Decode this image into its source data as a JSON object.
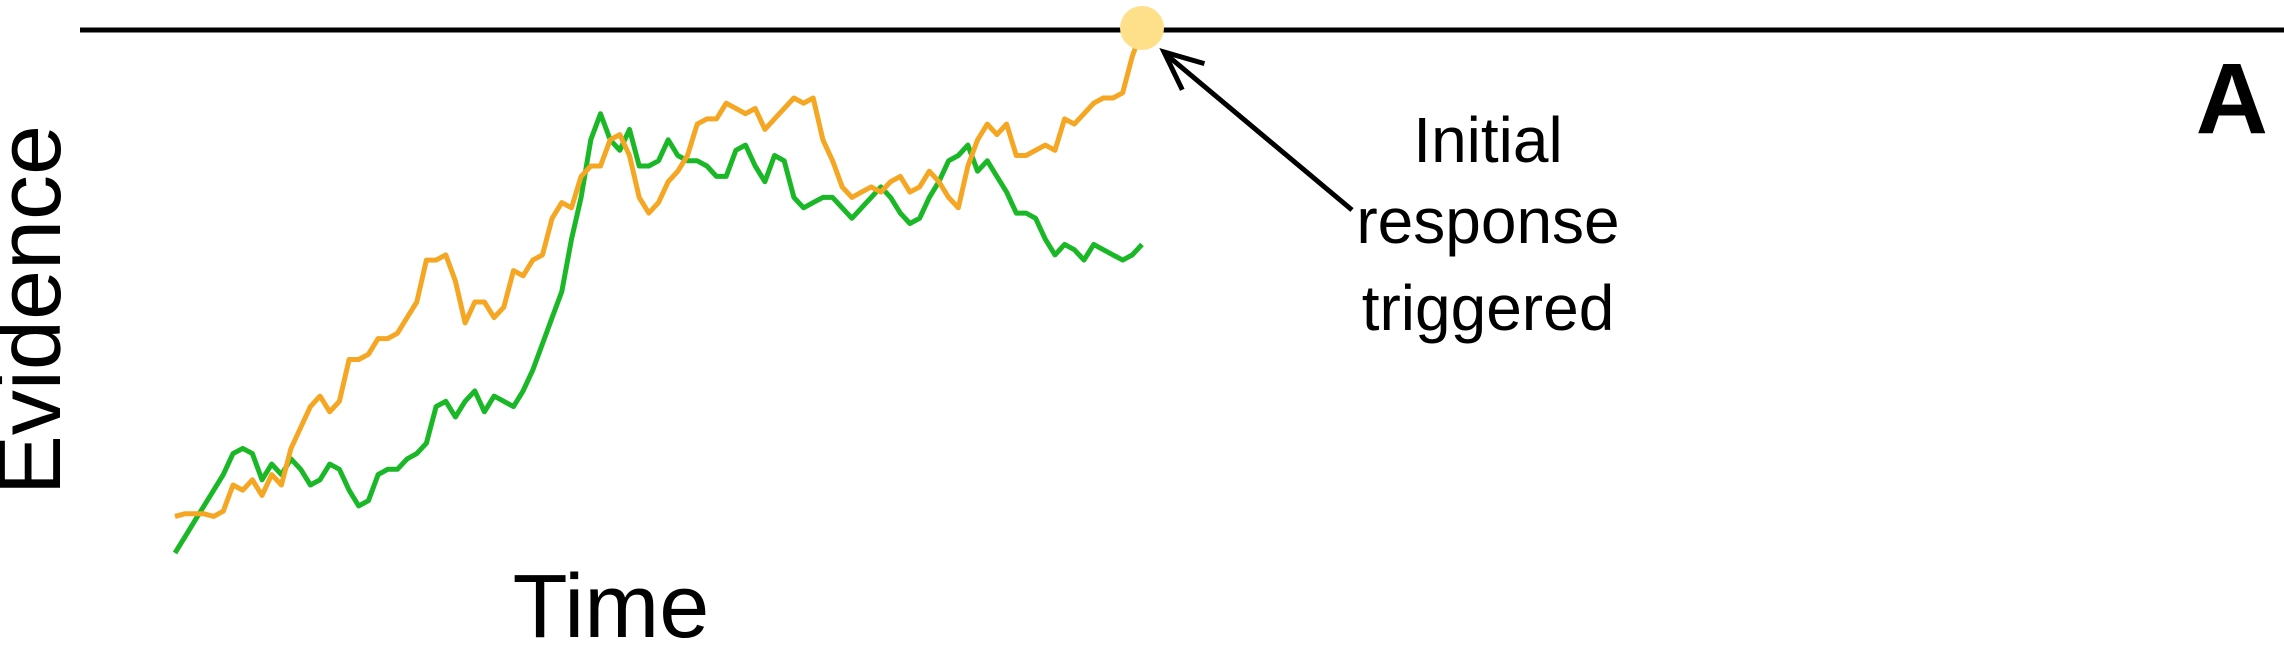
{
  "chart_data": {
    "type": "line",
    "xlabel": "Time",
    "ylabel": "Evidence",
    "panel_label": "A",
    "annotation": {
      "lines": [
        "Initial",
        "response",
        "triggered"
      ]
    },
    "xlim": [
      0,
      100
    ],
    "ylim": [
      0,
      100
    ],
    "threshold": 100,
    "series": [
      {
        "color": "#F5A623",
        "x": [
          0,
          1,
          2,
          3,
          4,
          5,
          6,
          7,
          8,
          9,
          10,
          11,
          12,
          13,
          14,
          15,
          16,
          17,
          18,
          19,
          20,
          21,
          22,
          23,
          24,
          25,
          26,
          27,
          28,
          29,
          30,
          31,
          32,
          33,
          34,
          35,
          36,
          37,
          38,
          39,
          40,
          41,
          42,
          43,
          44,
          45,
          46,
          47,
          48,
          49,
          50,
          51,
          52,
          53,
          54,
          55,
          56,
          57,
          58,
          59,
          60,
          61,
          62,
          63,
          64,
          65,
          66,
          67,
          68,
          69,
          70,
          71,
          72,
          73,
          74,
          75,
          76,
          77,
          78,
          79,
          80,
          81,
          82,
          83,
          84,
          85,
          86,
          87,
          88,
          89,
          90,
          91,
          92,
          93,
          94,
          95,
          96,
          97,
          98,
          99,
          100
        ],
        "values": [
          7,
          7.5,
          7.5,
          7.5,
          7,
          8,
          13,
          12,
          14,
          11,
          15,
          13,
          20,
          24,
          28,
          30,
          27,
          29,
          37,
          37,
          38,
          41,
          41,
          42,
          45,
          48,
          56,
          56,
          57,
          52,
          44,
          48,
          48,
          45,
          47,
          54,
          53,
          56,
          57,
          64,
          67,
          66,
          72,
          74,
          74,
          79,
          80,
          76,
          68,
          65,
          67,
          71,
          73,
          76,
          82,
          83,
          83,
          86,
          85,
          84,
          85,
          81,
          83,
          85,
          87,
          86,
          87,
          79,
          75,
          70,
          68,
          69,
          70,
          69,
          71,
          72,
          69,
          70,
          73,
          71,
          68,
          66,
          74,
          79,
          82,
          80,
          82,
          76,
          76,
          77,
          78,
          77,
          83,
          82,
          84,
          86,
          87,
          87,
          88,
          95,
          100
        ]
      },
      {
        "color": "#1AB827",
        "x": [
          0,
          1,
          2,
          3,
          4,
          5,
          6,
          7,
          8,
          9,
          10,
          11,
          12,
          13,
          14,
          15,
          16,
          17,
          18,
          19,
          20,
          21,
          22,
          23,
          24,
          25,
          26,
          27,
          28,
          29,
          30,
          31,
          32,
          33,
          34,
          35,
          36,
          37,
          38,
          39,
          40,
          41,
          42,
          43,
          44,
          45,
          46,
          47,
          48,
          49,
          50,
          51,
          52,
          53,
          54,
          55,
          56,
          57,
          58,
          59,
          60,
          61,
          62,
          63,
          64,
          65,
          66,
          67,
          68,
          69,
          70,
          71,
          72,
          73,
          74,
          75,
          76,
          77,
          78,
          79,
          80,
          81,
          82,
          83,
          84,
          85,
          86,
          87,
          88,
          89,
          90,
          91,
          92,
          93,
          94,
          95,
          96,
          97,
          98,
          99,
          100
        ],
        "values": [
          0,
          3,
          6,
          9,
          12,
          15,
          19,
          20,
          19,
          14,
          17,
          15,
          18,
          16,
          13,
          14,
          17,
          16,
          12,
          9,
          10,
          15,
          16,
          16,
          18,
          19,
          21,
          28,
          29,
          26,
          29,
          31,
          27,
          30,
          29,
          28,
          31,
          35,
          40,
          45,
          50,
          60,
          68,
          79,
          84,
          79,
          77,
          81,
          74,
          74,
          75,
          79,
          76,
          75,
          75,
          74,
          72,
          72,
          77,
          78,
          74,
          71,
          76,
          75,
          68,
          66,
          67,
          68,
          68,
          66,
          64,
          66,
          68,
          70,
          68,
          65,
          63,
          64,
          68,
          71,
          75,
          76,
          78,
          73,
          75,
          72,
          69,
          65,
          65,
          64,
          60,
          57,
          59,
          58,
          56,
          59,
          58,
          57,
          56,
          57,
          59
        ]
      }
    ]
  }
}
